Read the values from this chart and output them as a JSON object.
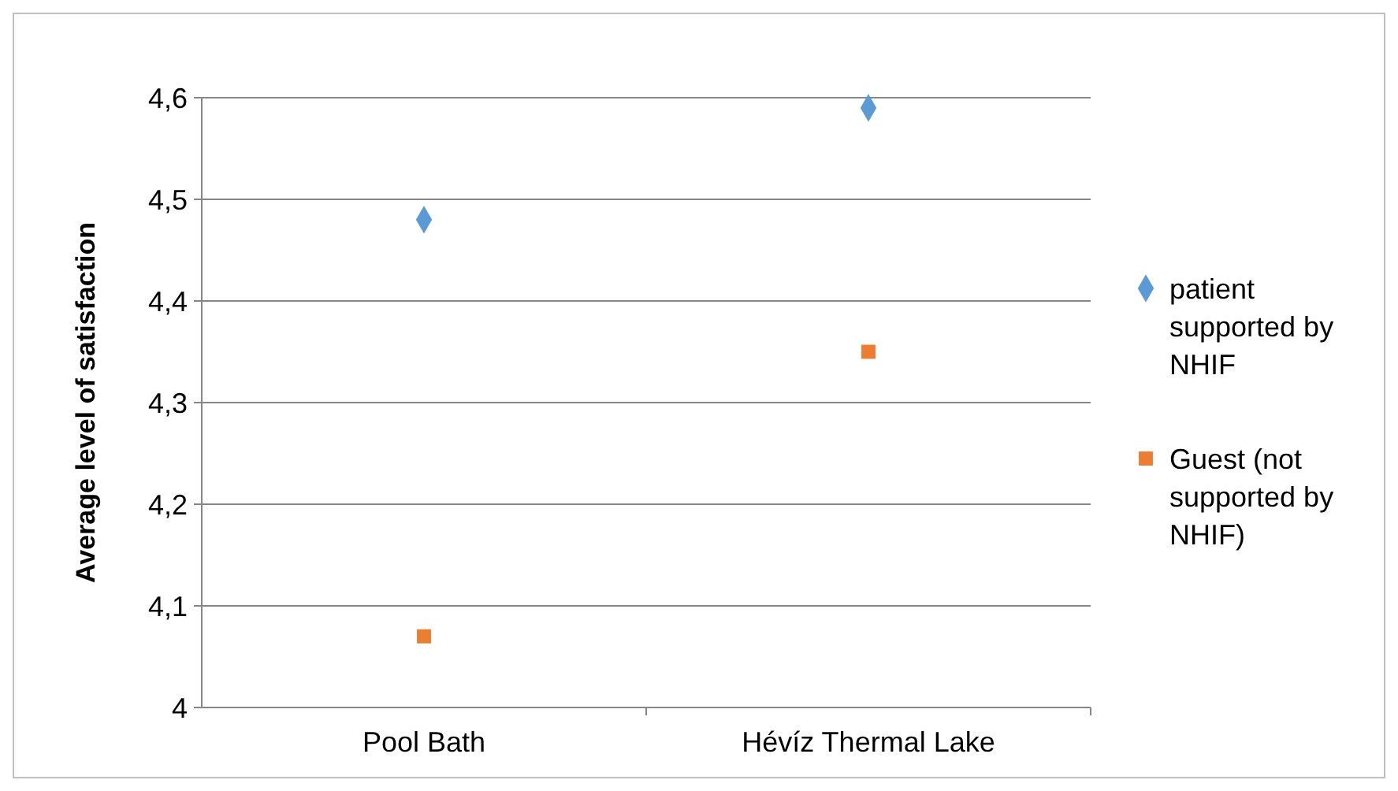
{
  "chart_data": {
    "type": "scatter",
    "ylabel": "Average level of satisfaction",
    "categories": [
      "Pool Bath",
      "Hévíz Thermal Lake"
    ],
    "series": [
      {
        "name": "patient supported by NHIF",
        "color": "#5b9bd5",
        "marker": "diamond",
        "values": [
          4.48,
          4.59
        ]
      },
      {
        "name": "Guest (not supported by NHIF)",
        "color": "#ed7d31",
        "marker": "square",
        "values": [
          4.07,
          4.35
        ]
      }
    ],
    "ylim": [
      4,
      4.6
    ],
    "yticks": [
      4,
      {
        "value": 4.1,
        "label": "4,1"
      },
      {
        "value": 4.2,
        "label": "4,2"
      },
      {
        "value": 4.3,
        "label": "4,3"
      },
      {
        "value": 4.4,
        "label": "4,4"
      },
      {
        "value": 4.5,
        "label": "4,5"
      },
      {
        "value": 4.6,
        "label": "4,6"
      }
    ],
    "grid": "y",
    "legend": "right"
  }
}
